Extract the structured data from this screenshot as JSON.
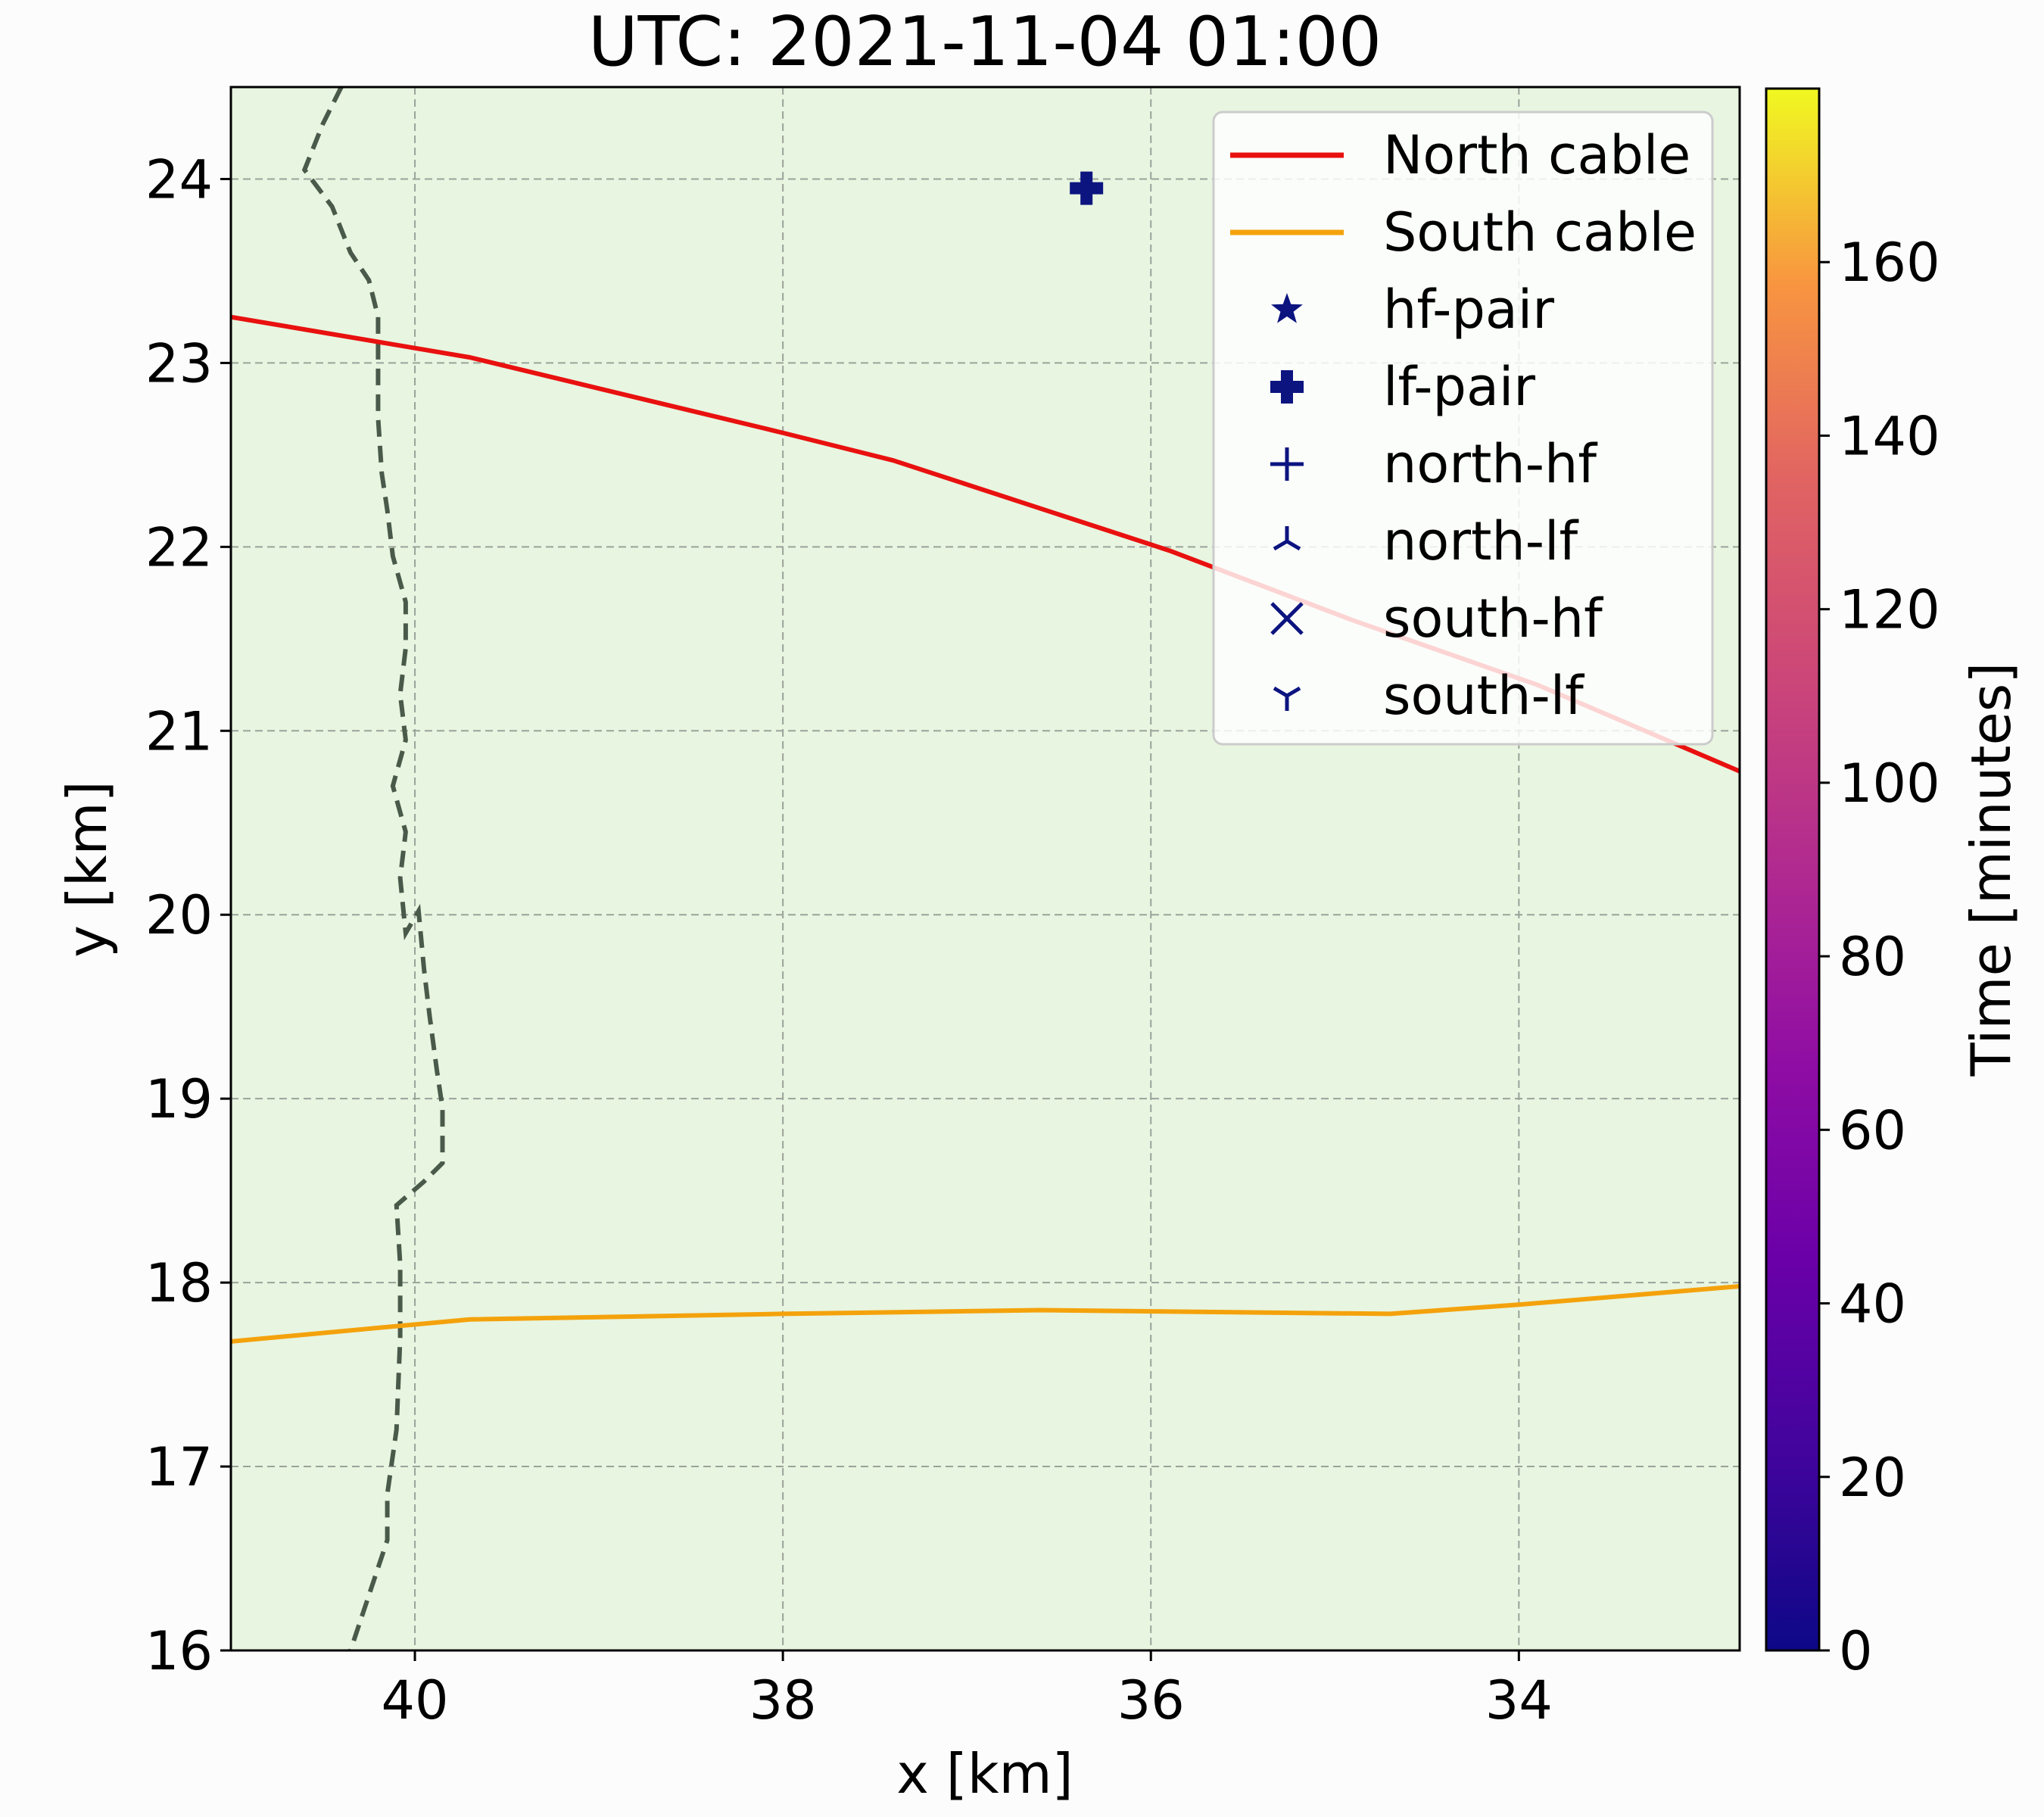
{
  "chart_data": {
    "type": "line",
    "title": "UTC: 2021-11-04 01:00",
    "xlabel": "x [km]",
    "ylabel": "y [km]",
    "xlim": [
      41.0,
      32.8
    ],
    "ylim": [
      16.0,
      24.5
    ],
    "x_inverted": true,
    "xticks": [
      40,
      38,
      36,
      34
    ],
    "yticks": [
      16,
      17,
      18,
      19,
      20,
      21,
      22,
      23,
      24
    ],
    "grid": true,
    "legend_position": "top-right",
    "background_color": "#e8f5e0",
    "series": [
      {
        "name": "North cable",
        "color": "#e8110f",
        "points": [
          [
            41.0,
            23.25
          ],
          [
            39.7,
            23.03
          ],
          [
            38.0,
            22.62
          ],
          [
            37.4,
            22.47
          ],
          [
            35.9,
            21.98
          ],
          [
            34.9,
            21.6
          ],
          [
            33.9,
            21.25
          ],
          [
            32.8,
            20.78
          ]
        ]
      },
      {
        "name": "South cable",
        "color": "#f4a20c",
        "points": [
          [
            41.0,
            17.68
          ],
          [
            39.7,
            17.8
          ],
          [
            38.0,
            17.83
          ],
          [
            36.6,
            17.85
          ],
          [
            34.7,
            17.83
          ],
          [
            34.0,
            17.88
          ],
          [
            32.8,
            17.98
          ]
        ]
      }
    ],
    "coastline": {
      "color": "#4a5a4a",
      "points": [
        [
          40.4,
          24.5
        ],
        [
          40.5,
          24.3
        ],
        [
          40.6,
          24.05
        ],
        [
          40.45,
          23.85
        ],
        [
          40.35,
          23.6
        ],
        [
          40.25,
          23.45
        ],
        [
          40.2,
          23.25
        ],
        [
          40.2,
          23.0
        ],
        [
          40.2,
          22.7
        ],
        [
          40.18,
          22.4
        ],
        [
          40.15,
          22.2
        ],
        [
          40.12,
          21.95
        ],
        [
          40.05,
          21.7
        ],
        [
          40.05,
          21.45
        ],
        [
          40.08,
          21.2
        ],
        [
          40.05,
          20.95
        ],
        [
          40.12,
          20.7
        ],
        [
          40.05,
          20.45
        ],
        [
          40.08,
          20.2
        ],
        [
          40.05,
          19.9
        ],
        [
          39.98,
          20.02
        ],
        [
          39.95,
          19.7
        ],
        [
          39.92,
          19.45
        ],
        [
          39.88,
          19.15
        ],
        [
          39.85,
          18.95
        ],
        [
          39.85,
          18.65
        ],
        [
          39.95,
          18.55
        ],
        [
          40.1,
          18.42
        ],
        [
          40.08,
          18.1
        ],
        [
          40.08,
          17.7
        ],
        [
          40.1,
          17.2
        ],
        [
          40.15,
          16.85
        ],
        [
          40.15,
          16.6
        ],
        [
          40.25,
          16.3
        ],
        [
          40.35,
          16.0
        ]
      ]
    },
    "markers": [
      {
        "name": "lf-pair",
        "x": 36.35,
        "y": 23.95,
        "color": "#0c1480"
      }
    ],
    "legend_entries": [
      {
        "label": "North cable",
        "kind": "line",
        "color": "#e8110f"
      },
      {
        "label": "South cable",
        "kind": "line",
        "color": "#f4a20c"
      },
      {
        "label": "hf-pair",
        "kind": "star",
        "color": "#0c1480"
      },
      {
        "label": "lf-pair",
        "kind": "thick-plus",
        "color": "#0c1480"
      },
      {
        "label": "north-hf",
        "kind": "plus",
        "color": "#0c1480"
      },
      {
        "label": "north-lf",
        "kind": "tri-up",
        "color": "#0c1480"
      },
      {
        "label": "south-hf",
        "kind": "x",
        "color": "#0c1480"
      },
      {
        "label": "south-lf",
        "kind": "tri-down",
        "color": "#0c1480"
      }
    ],
    "colorbar": {
      "label": "Time [minutes]",
      "colormap": "plasma",
      "range": [
        0,
        180
      ],
      "ticks": [
        0,
        20,
        40,
        60,
        80,
        100,
        120,
        140,
        160
      ]
    }
  }
}
